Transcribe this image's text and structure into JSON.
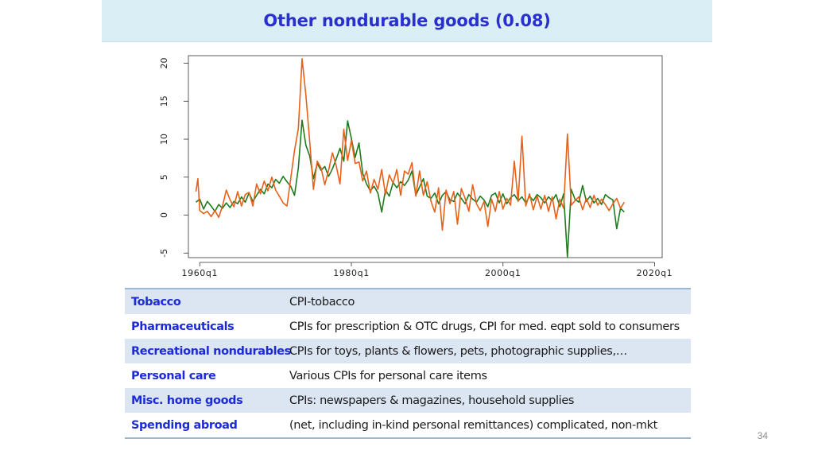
{
  "title": "Other nondurable goods (0.08)",
  "page_number": "34",
  "colors": {
    "green": "#1e7b1e",
    "orange": "#e8611a",
    "category": "#1d2bd6"
  },
  "chart_data": {
    "type": "line",
    "title": "",
    "xlabel": "",
    "ylabel": "",
    "xlim": [
      1958.5,
      2021
    ],
    "ylim": [
      -5.6,
      21
    ],
    "x_ticks": [
      1960,
      1980,
      2000,
      2020
    ],
    "x_tick_labels": [
      "1960q1",
      "1980q1",
      "2000q1",
      "2020q1"
    ],
    "y_ticks": [
      -5,
      0,
      5,
      10,
      15,
      20
    ],
    "y_tick_labels": [
      "-5",
      "0",
      "5",
      "10",
      "15",
      "20"
    ],
    "series": [
      {
        "name": "green",
        "color": "#1e7b1e",
        "x": [
          1959.5,
          1960,
          1960.5,
          1961,
          1961.5,
          1962,
          1962.5,
          1963,
          1963.5,
          1964,
          1964.5,
          1965,
          1965.5,
          1966,
          1966.5,
          1967,
          1967.5,
          1968,
          1968.5,
          1969,
          1969.5,
          1970,
          1970.5,
          1971,
          1971.5,
          1972,
          1972.5,
          1973,
          1973.5,
          1974,
          1974.5,
          1975,
          1975.5,
          1976,
          1976.5,
          1977,
          1977.5,
          1978,
          1978.5,
          1979,
          1979.5,
          1980,
          1980.5,
          1981,
          1981.5,
          1982,
          1982.5,
          1983,
          1983.5,
          1984,
          1984.5,
          1985,
          1985.5,
          1986,
          1986.5,
          1987,
          1987.5,
          1988,
          1988.5,
          1989,
          1989.5,
          1990,
          1990.5,
          1991,
          1991.5,
          1992,
          1992.5,
          1993,
          1993.5,
          1994,
          1994.5,
          1995,
          1995.5,
          1996,
          1996.5,
          1997,
          1997.5,
          1998,
          1998.5,
          1999,
          1999.5,
          2000,
          2000.5,
          2001,
          2001.5,
          2002,
          2002.5,
          2003,
          2003.5,
          2004,
          2004.5,
          2005,
          2005.5,
          2006,
          2006.5,
          2007,
          2007.5,
          2008,
          2008.5,
          2009,
          2009.5,
          2010,
          2010.5,
          2011,
          2011.5,
          2012,
          2012.5,
          2013,
          2013.5,
          2014,
          2014.5,
          2015,
          2015.5,
          2016
        ],
        "values": [
          1.7,
          2.1,
          0.8,
          1.8,
          1.2,
          0.5,
          1.4,
          0.9,
          1.6,
          1.0,
          1.8,
          1.5,
          2.4,
          1.7,
          2.9,
          1.8,
          2.6,
          3.4,
          2.8,
          4.1,
          3.6,
          4.7,
          4.2,
          5.1,
          4.4,
          3.8,
          2.6,
          6.2,
          12.5,
          9.2,
          7.8,
          4.8,
          6.8,
          5.9,
          6.4,
          5.1,
          6.1,
          7.4,
          8.8,
          7.1,
          12.4,
          10.1,
          7.6,
          9.5,
          5.5,
          4.1,
          3.2,
          3.8,
          2.9,
          0.4,
          3.3,
          2.5,
          4.3,
          3.6,
          4.4,
          3.9,
          4.6,
          5.8,
          2.6,
          3.7,
          4.8,
          2.5,
          2.2,
          2.9,
          1.5,
          2.6,
          3.1,
          2.0,
          1.8,
          2.9,
          2.2,
          1.5,
          2.7,
          2.1,
          1.7,
          2.5,
          2.0,
          1.1,
          2.6,
          2.9,
          1.6,
          2.8,
          1.5,
          2.3,
          2.7,
          1.9,
          2.4,
          1.6,
          2.5,
          1.9,
          2.7,
          2.3,
          1.6,
          2.4,
          1.9,
          2.7,
          1.1,
          2.8,
          -5.5,
          3.4,
          2.1,
          1.7,
          3.9,
          1.8,
          2.5,
          1.6,
          2.2,
          1.4,
          2.7,
          2.3,
          2.0,
          -1.8,
          0.9,
          0.4
        ]
      },
      {
        "name": "orange",
        "color": "#e8611a",
        "x": [
          1959.5,
          1959.75,
          1960,
          1960.5,
          1961,
          1961.5,
          1962,
          1962.5,
          1963,
          1963.5,
          1964,
          1964.5,
          1965,
          1965.5,
          1966,
          1966.5,
          1967,
          1967.5,
          1968,
          1968.5,
          1969,
          1969.5,
          1970,
          1970.5,
          1971,
          1971.5,
          1972,
          1972.5,
          1973,
          1973.5,
          1974,
          1974.5,
          1975,
          1975.5,
          1976,
          1976.5,
          1977,
          1977.5,
          1978,
          1978.5,
          1979,
          1979.5,
          1980,
          1980.5,
          1981,
          1981.5,
          1982,
          1982.5,
          1983,
          1983.5,
          1984,
          1984.5,
          1985,
          1985.5,
          1986,
          1986.5,
          1987,
          1987.5,
          1988,
          1988.5,
          1989,
          1989.5,
          1990,
          1990.5,
          1991,
          1991.5,
          1992,
          1992.5,
          1993,
          1993.5,
          1994,
          1994.5,
          1995,
          1995.5,
          1996,
          1996.5,
          1997,
          1997.5,
          1998,
          1998.5,
          1999,
          1999.5,
          2000,
          2000.5,
          2001,
          2001.5,
          2002,
          2002.5,
          2003,
          2003.5,
          2004,
          2004.5,
          2005,
          2005.5,
          2006,
          2006.5,
          2007,
          2007.5,
          2008,
          2008.5,
          2009,
          2009.5,
          2010,
          2010.5,
          2011,
          2011.5,
          2012,
          2012.5,
          2013,
          2013.5,
          2014,
          2014.5,
          2015,
          2015.5,
          2016
        ],
        "values": [
          3.1,
          4.8,
          0.6,
          0.2,
          0.5,
          -0.2,
          0.6,
          -0.3,
          1.2,
          3.3,
          2.0,
          1.1,
          3.1,
          1.2,
          2.7,
          3.0,
          1.2,
          4.1,
          2.8,
          4.5,
          3.2,
          5.0,
          3.3,
          2.5,
          1.6,
          1.2,
          4.8,
          8.5,
          11.4,
          20.6,
          15.8,
          9.7,
          3.4,
          7.1,
          6.2,
          4.0,
          5.9,
          8.2,
          6.5,
          4.1,
          11.3,
          7.2,
          9.8,
          6.8,
          7.0,
          4.5,
          5.8,
          2.9,
          4.7,
          3.4,
          6.0,
          2.7,
          5.3,
          4.2,
          6.0,
          2.6,
          5.8,
          5.4,
          6.9,
          2.5,
          5.8,
          2.6,
          4.4,
          1.8,
          0.4,
          3.6,
          -2.0,
          3.3,
          1.5,
          3.1,
          -1.2,
          3.5,
          2.2,
          0.5,
          4.0,
          1.5,
          0.6,
          1.8,
          -1.5,
          2.1,
          0.5,
          3.1,
          0.8,
          2.2,
          1.3,
          7.1,
          1.8,
          10.4,
          1.2,
          2.8,
          0.7,
          2.5,
          0.8,
          2.6,
          0.5,
          2.4,
          -0.5,
          2.1,
          0.9,
          10.7,
          1.3,
          1.9,
          2.4,
          0.7,
          2.2,
          1.0,
          2.6,
          1.3,
          2.1,
          1.4,
          0.6,
          1.5,
          2.2,
          0.9,
          1.7
        ]
      }
    ]
  },
  "table": {
    "rows": [
      {
        "category": "Tobacco",
        "description": "CPI-tobacco"
      },
      {
        "category": "Pharmaceuticals",
        "description": "CPIs for prescription & OTC drugs, CPI for med. eqpt sold to consumers"
      },
      {
        "category": "Recreational nondurables",
        "description": "CPIs for toys, plants & flowers, pets, photographic supplies,…"
      },
      {
        "category": "Personal care",
        "description": "Various CPIs for personal care items"
      },
      {
        "category": "Misc. home goods",
        "description": "CPIs: newspapers & magazines, household supplies"
      },
      {
        "category": "Spending abroad",
        "description": "(net, including in-kind personal remittances) complicated, non-mkt"
      }
    ]
  }
}
